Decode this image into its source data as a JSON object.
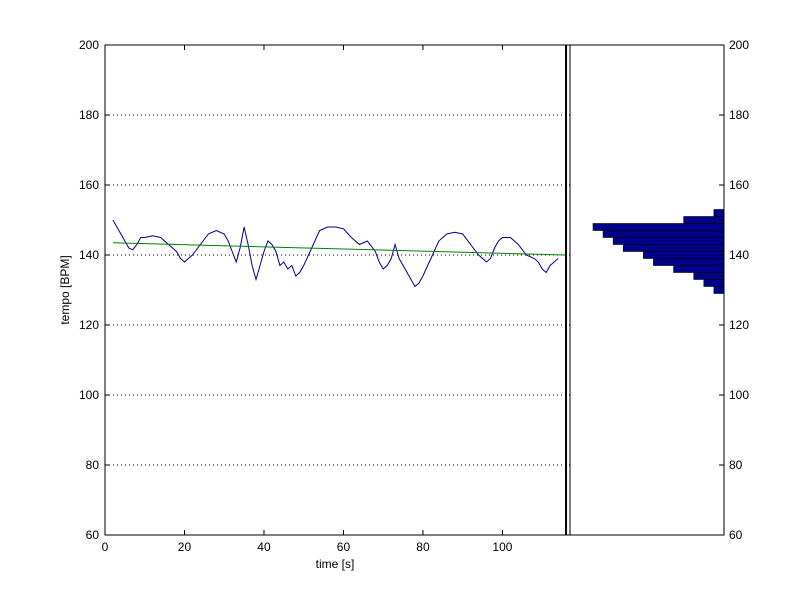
{
  "chart_data": {
    "type": "line",
    "xlabel": "time [s]",
    "ylabel": "tempo [BPM]",
    "xlim": [
      0,
      117
    ],
    "ylim": [
      60,
      200
    ],
    "xticks": [
      0,
      20,
      40,
      60,
      80,
      100
    ],
    "yticks": [
      60,
      80,
      100,
      120,
      140,
      160,
      180,
      200
    ],
    "grid": "horizontal-dotted",
    "colors": {
      "tempo": "#00008b",
      "trend": "#008000",
      "histogram": "#00008b",
      "marker": "#000000"
    },
    "series": [
      {
        "x": [
          2,
          3,
          4,
          5,
          6,
          7,
          8,
          9,
          10,
          12,
          14,
          16,
          17,
          18,
          19,
          20,
          22,
          24,
          26,
          28,
          30,
          31,
          32,
          33,
          34,
          35,
          36,
          37,
          38,
          40,
          41,
          42,
          43,
          44,
          45,
          46,
          47,
          48,
          49,
          50,
          52,
          54,
          56,
          58,
          60,
          62,
          64,
          66,
          68,
          69,
          70,
          71,
          72,
          73,
          74,
          76,
          77,
          78,
          79,
          80,
          82,
          84,
          86,
          88,
          90,
          92,
          94,
          95,
          96,
          97,
          98,
          99,
          100,
          102,
          104,
          106,
          108,
          109,
          110,
          111,
          112,
          113,
          114
        ],
        "values": [
          150,
          148,
          146,
          144,
          142,
          141.5,
          143,
          145,
          145,
          145.5,
          145,
          143,
          142,
          141,
          139,
          138,
          140,
          143,
          146,
          147,
          146,
          144,
          141,
          138,
          142,
          148,
          143,
          137,
          133,
          141,
          144,
          143,
          141,
          137,
          138,
          136,
          137,
          134,
          135,
          137,
          142,
          147,
          148,
          148,
          147.5,
          145,
          143,
          144,
          141,
          138,
          136,
          137,
          139,
          143,
          139,
          135,
          133,
          131,
          132,
          134,
          139,
          144,
          146,
          146.5,
          146,
          143,
          140,
          139,
          138,
          139,
          142,
          144,
          145,
          145,
          143,
          140,
          139,
          138,
          136,
          135,
          137,
          138,
          139
        ]
      },
      {
        "x": [
          2,
          116
        ],
        "values": [
          143.5,
          140
        ]
      }
    ],
    "marker_x": 116,
    "histogram": {
      "bins": [
        129,
        131,
        133,
        135,
        137,
        139,
        141,
        143,
        145,
        147,
        149,
        151
      ],
      "counts": [
        1,
        2,
        3,
        5,
        7,
        8,
        10,
        11,
        12,
        13,
        4,
        1
      ]
    }
  }
}
